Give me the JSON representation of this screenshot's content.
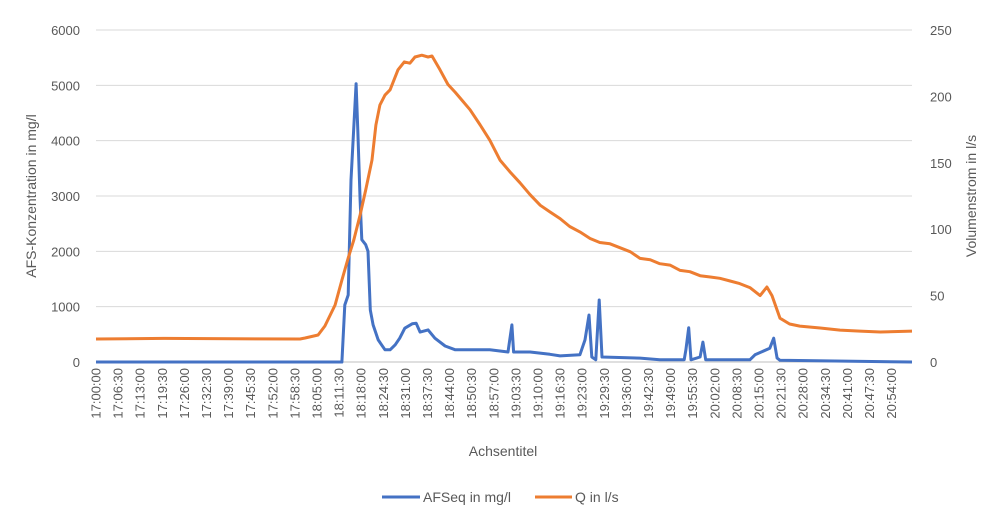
{
  "chart_data": {
    "type": "line",
    "title": "",
    "xlabel": "Achsentitel",
    "ylabel": "AFS-Konzentration in mg/l",
    "y2label": "Volumenstrom in l/s",
    "xlim": [
      "17:00:00",
      "21:00:00"
    ],
    "ylim": [
      0,
      6000
    ],
    "y2lim": [
      0,
      250
    ],
    "yticks": [
      0,
      1000,
      2000,
      3000,
      4000,
      5000,
      6000
    ],
    "y2ticks": [
      0,
      50,
      100,
      150,
      200,
      250
    ],
    "xtick_labels": [
      "17:00:00",
      "17:06:30",
      "17:13:00",
      "17:19:30",
      "17:26:00",
      "17:32:30",
      "17:39:00",
      "17:45:30",
      "17:52:00",
      "17:58:30",
      "18:05:00",
      "18:11:30",
      "18:18:00",
      "18:24:30",
      "18:31:00",
      "18:37:30",
      "18:44:00",
      "18:50:30",
      "18:57:00",
      "19:03:30",
      "19:10:00",
      "19:16:30",
      "19:23:00",
      "19:29:30",
      "19:36:00",
      "19:42:30",
      "19:49:00",
      "19:55:30",
      "20:02:00",
      "20:08:30",
      "20:15:00",
      "20:21:30",
      "20:28:00",
      "20:34:30",
      "20:41:00",
      "20:47:30",
      "20:54:00"
    ],
    "grid": true,
    "legend_position": "bottom",
    "series": [
      {
        "name": "AFSeq in mg/l",
        "axis": "left",
        "color": "#4472c4",
        "points": [
          [
            "17:00:00",
            0
          ],
          [
            "18:12:20",
            0
          ],
          [
            "18:13:10",
            1030
          ],
          [
            "18:14:10",
            1210
          ],
          [
            "18:15:00",
            3290
          ],
          [
            "18:16:30",
            5030
          ],
          [
            "18:17:00",
            4190
          ],
          [
            "18:17:40",
            2930
          ],
          [
            "18:18:10",
            2210
          ],
          [
            "18:19:20",
            2120
          ],
          [
            "18:20:00",
            2000
          ],
          [
            "18:20:40",
            940
          ],
          [
            "18:21:30",
            670
          ],
          [
            "18:23:00",
            400
          ],
          [
            "18:25:00",
            220
          ],
          [
            "18:26:30",
            220
          ],
          [
            "18:28:00",
            310
          ],
          [
            "18:29:20",
            430
          ],
          [
            "18:30:50",
            610
          ],
          [
            "18:33:00",
            690
          ],
          [
            "18:34:10",
            700
          ],
          [
            "18:35:20",
            540
          ],
          [
            "18:37:40",
            580
          ],
          [
            "18:39:40",
            430
          ],
          [
            "18:42:40",
            290
          ],
          [
            "18:45:40",
            220
          ],
          [
            "18:50:00",
            220
          ],
          [
            "18:55:50",
            220
          ],
          [
            "19:01:10",
            180
          ],
          [
            "19:02:20",
            670
          ],
          [
            "19:02:50",
            180
          ],
          [
            "19:07:40",
            180
          ],
          [
            "19:13:30",
            140
          ],
          [
            "19:16:30",
            110
          ],
          [
            "19:22:20",
            130
          ],
          [
            "19:23:50",
            400
          ],
          [
            "19:25:00",
            850
          ],
          [
            "19:25:50",
            90
          ],
          [
            "19:27:00",
            40
          ],
          [
            "19:28:00",
            1120
          ],
          [
            "19:28:50",
            90
          ],
          [
            "19:40:00",
            70
          ],
          [
            "19:45:50",
            40
          ],
          [
            "19:53:00",
            40
          ],
          [
            "19:53:30",
            220
          ],
          [
            "19:54:20",
            620
          ],
          [
            "19:55:00",
            40
          ],
          [
            "19:57:40",
            90
          ],
          [
            "19:58:30",
            360
          ],
          [
            "19:59:20",
            40
          ],
          [
            "20:12:20",
            40
          ],
          [
            "20:13:50",
            130
          ],
          [
            "20:18:10",
            250
          ],
          [
            "20:19:20",
            430
          ],
          [
            "20:20:20",
            70
          ],
          [
            "20:21:10",
            30
          ],
          [
            "21:00:00",
            0
          ]
        ]
      },
      {
        "name": "Q in l/s",
        "axis": "right",
        "color": "#ed7d31",
        "points": [
          [
            "17:00:00",
            17.3
          ],
          [
            "17:20:00",
            17.8
          ],
          [
            "17:40:00",
            17.5
          ],
          [
            "18:00:00",
            17.3
          ],
          [
            "18:01:30",
            18.1
          ],
          [
            "18:05:20",
            20.3
          ],
          [
            "18:07:20",
            27.1
          ],
          [
            "18:10:20",
            42.9
          ],
          [
            "18:12:20",
            61.7
          ],
          [
            "18:14:10",
            78.3
          ],
          [
            "18:15:50",
            91.9
          ],
          [
            "18:17:40",
            110.7
          ],
          [
            "18:19:20",
            129.5
          ],
          [
            "18:21:10",
            152.1
          ],
          [
            "18:22:20",
            178.5
          ],
          [
            "18:23:30",
            193.5
          ],
          [
            "18:25:00",
            201
          ],
          [
            "18:26:30",
            205
          ],
          [
            "18:28:50",
            220
          ],
          [
            "18:30:40",
            226
          ],
          [
            "18:32:20",
            225
          ],
          [
            "18:33:50",
            229.7
          ],
          [
            "18:35:50",
            231
          ],
          [
            "18:37:40",
            229.7
          ],
          [
            "18:38:50",
            230.4
          ],
          [
            "18:41:10",
            220
          ],
          [
            "18:43:30",
            209
          ],
          [
            "18:45:40",
            203
          ],
          [
            "18:47:40",
            197
          ],
          [
            "18:50:00",
            190
          ],
          [
            "18:53:00",
            178.5
          ],
          [
            "18:55:50",
            167
          ],
          [
            "18:58:50",
            152
          ],
          [
            "19:01:50",
            143
          ],
          [
            "19:04:40",
            135
          ],
          [
            "19:07:40",
            126
          ],
          [
            "19:10:40",
            118
          ],
          [
            "19:13:30",
            113
          ],
          [
            "19:16:30",
            108
          ],
          [
            "19:19:20",
            102
          ],
          [
            "19:22:20",
            98
          ],
          [
            "19:25:20",
            93
          ],
          [
            "19:28:10",
            90
          ],
          [
            "19:31:10",
            89
          ],
          [
            "19:34:10",
            86
          ],
          [
            "19:37:10",
            83
          ],
          [
            "19:40:00",
            78
          ],
          [
            "19:43:00",
            77
          ],
          [
            "19:45:50",
            74
          ],
          [
            "19:48:50",
            73
          ],
          [
            "19:51:50",
            69
          ],
          [
            "19:54:40",
            68
          ],
          [
            "19:57:40",
            65
          ],
          [
            "20:00:40",
            64
          ],
          [
            "20:03:30",
            63
          ],
          [
            "20:06:30",
            61
          ],
          [
            "20:09:20",
            59
          ],
          [
            "20:12:20",
            56
          ],
          [
            "20:15:20",
            50
          ],
          [
            "20:17:20",
            56.5
          ],
          [
            "20:18:50",
            50
          ],
          [
            "20:21:10",
            33
          ],
          [
            "20:24:00",
            28.6
          ],
          [
            "20:27:00",
            27
          ],
          [
            "20:33:00",
            25.6
          ],
          [
            "20:38:50",
            24
          ],
          [
            "20:44:40",
            23.3
          ],
          [
            "20:50:40",
            22.6
          ],
          [
            "21:00:00",
            23.3
          ]
        ]
      }
    ]
  }
}
